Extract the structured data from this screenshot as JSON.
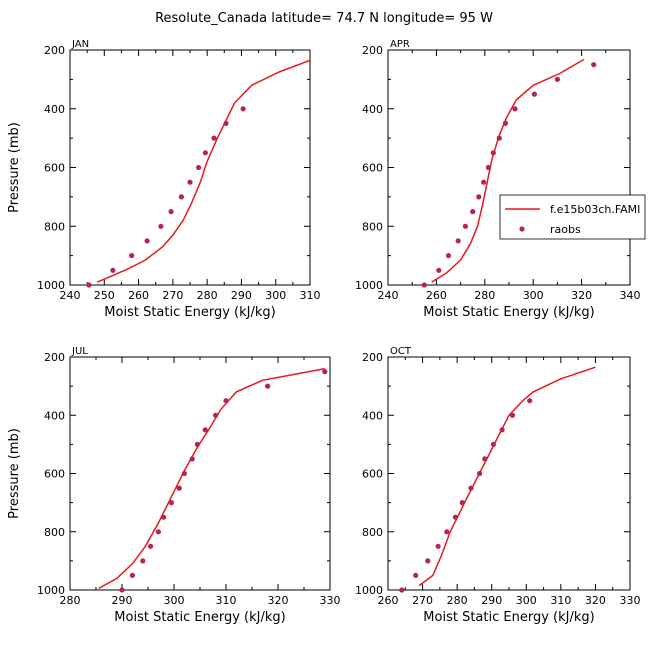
{
  "title": "Resolute_Canada   latitude= 74.7 N longitude= 95 W",
  "colors": {
    "model": "#e8191c",
    "obs": "#b5245a"
  },
  "legend": {
    "model_label": "f.e15b03ch.FAMI",
    "obs_label": "raobs"
  },
  "chart_data": [
    {
      "type": "line+scatter",
      "panel": "JAN",
      "xlabel": "Moist Static Energy (kJ/kg)",
      "ylabel": "Pressure (mb)",
      "xlim": [
        240,
        310
      ],
      "xticks": [
        240,
        250,
        260,
        270,
        280,
        290,
        300,
        310
      ],
      "ylim": [
        1000,
        200
      ],
      "yticks": [
        200,
        400,
        600,
        800,
        1000
      ],
      "model": [
        [
          248,
          990
        ],
        [
          252,
          970
        ],
        [
          257,
          945
        ],
        [
          262,
          915
        ],
        [
          267,
          870
        ],
        [
          270,
          830
        ],
        [
          273,
          780
        ],
        [
          275.5,
          720
        ],
        [
          278,
          650
        ],
        [
          280,
          580
        ],
        [
          283,
          500
        ],
        [
          285.5,
          440
        ],
        [
          288,
          380
        ],
        [
          293,
          320
        ],
        [
          301,
          275
        ],
        [
          310,
          235
        ]
      ],
      "obs": [
        [
          245.5,
          1000
        ],
        [
          252.5,
          950
        ],
        [
          258,
          900
        ],
        [
          262.5,
          850
        ],
        [
          266.5,
          800
        ],
        [
          269.5,
          750
        ],
        [
          272.5,
          700
        ],
        [
          275,
          650
        ],
        [
          277.5,
          600
        ],
        [
          279.5,
          550
        ],
        [
          282,
          500
        ],
        [
          285.5,
          450
        ],
        [
          290.5,
          400
        ]
      ]
    },
    {
      "type": "line+scatter",
      "panel": "APR",
      "xlabel": "Moist Static Energy (kJ/kg)",
      "ylabel": "",
      "xlim": [
        240,
        340
      ],
      "xticks": [
        240,
        260,
        280,
        300,
        320,
        340
      ],
      "ylim": [
        1000,
        200
      ],
      "yticks": [
        200,
        400,
        600,
        800,
        1000
      ],
      "model": [
        [
          258,
          990
        ],
        [
          264,
          960
        ],
        [
          270,
          915
        ],
        [
          274,
          860
        ],
        [
          277,
          800
        ],
        [
          279,
          730
        ],
        [
          281,
          650
        ],
        [
          283,
          570
        ],
        [
          286,
          490
        ],
        [
          289,
          430
        ],
        [
          293,
          370
        ],
        [
          300,
          320
        ],
        [
          311,
          280
        ],
        [
          321,
          232
        ]
      ],
      "obs": [
        [
          255,
          1000
        ],
        [
          261,
          950
        ],
        [
          265,
          900
        ],
        [
          269,
          850
        ],
        [
          272,
          800
        ],
        [
          275,
          750
        ],
        [
          277.5,
          700
        ],
        [
          279.5,
          650
        ],
        [
          281.5,
          600
        ],
        [
          283.5,
          550
        ],
        [
          286,
          500
        ],
        [
          288.5,
          450
        ],
        [
          292.5,
          400
        ],
        [
          300.5,
          350
        ],
        [
          310,
          300
        ],
        [
          325,
          250
        ]
      ]
    },
    {
      "type": "line+scatter",
      "panel": "JUL",
      "xlabel": "Moist Static Energy (kJ/kg)",
      "ylabel": "Pressure (mb)",
      "xlim": [
        280,
        330
      ],
      "xticks": [
        280,
        290,
        300,
        310,
        320,
        330
      ],
      "ylim": [
        1000,
        200
      ],
      "yticks": [
        200,
        400,
        600,
        800,
        1000
      ],
      "model": [
        [
          285.5,
          995
        ],
        [
          289,
          960
        ],
        [
          292,
          910
        ],
        [
          294.5,
          850
        ],
        [
          297,
          770
        ],
        [
          299.5,
          680
        ],
        [
          302,
          590
        ],
        [
          304.5,
          510
        ],
        [
          307,
          440
        ],
        [
          309,
          380
        ],
        [
          312,
          320
        ],
        [
          317,
          280
        ],
        [
          323,
          260
        ],
        [
          329,
          240
        ]
      ],
      "obs": [
        [
          290,
          1000
        ],
        [
          292,
          950
        ],
        [
          294,
          900
        ],
        [
          295.5,
          850
        ],
        [
          297,
          800
        ],
        [
          298,
          750
        ],
        [
          299.5,
          700
        ],
        [
          301,
          650
        ],
        [
          302,
          600
        ],
        [
          303.5,
          550
        ],
        [
          304.5,
          500
        ],
        [
          306,
          450
        ],
        [
          308,
          400
        ],
        [
          310,
          350
        ],
        [
          318,
          300
        ],
        [
          329,
          250
        ]
      ]
    },
    {
      "type": "line+scatter",
      "panel": "OCT",
      "xlabel": "Moist Static Energy (kJ/kg)",
      "ylabel": "",
      "xlim": [
        260,
        330
      ],
      "xticks": [
        260,
        270,
        280,
        290,
        300,
        310,
        320,
        330
      ],
      "ylim": [
        1000,
        200
      ],
      "yticks": [
        200,
        400,
        600,
        800,
        1000
      ],
      "model": [
        [
          269,
          985
        ],
        [
          273,
          950
        ],
        [
          275.5,
          880
        ],
        [
          278,
          800
        ],
        [
          280.5,
          740
        ],
        [
          283,
          680
        ],
        [
          286,
          610
        ],
        [
          289,
          540
        ],
        [
          292,
          470
        ],
        [
          295,
          400
        ],
        [
          299,
          350
        ],
        [
          302,
          320
        ],
        [
          310,
          275
        ],
        [
          320,
          235
        ]
      ],
      "obs": [
        [
          264,
          1000
        ],
        [
          268,
          950
        ],
        [
          271.5,
          900
        ],
        [
          274.5,
          850
        ],
        [
          277,
          800
        ],
        [
          279.5,
          750
        ],
        [
          281.5,
          700
        ],
        [
          284,
          650
        ],
        [
          286.5,
          600
        ],
        [
          288,
          550
        ],
        [
          290.5,
          500
        ],
        [
          293,
          450
        ],
        [
          296,
          400
        ],
        [
          301,
          350
        ]
      ]
    }
  ]
}
